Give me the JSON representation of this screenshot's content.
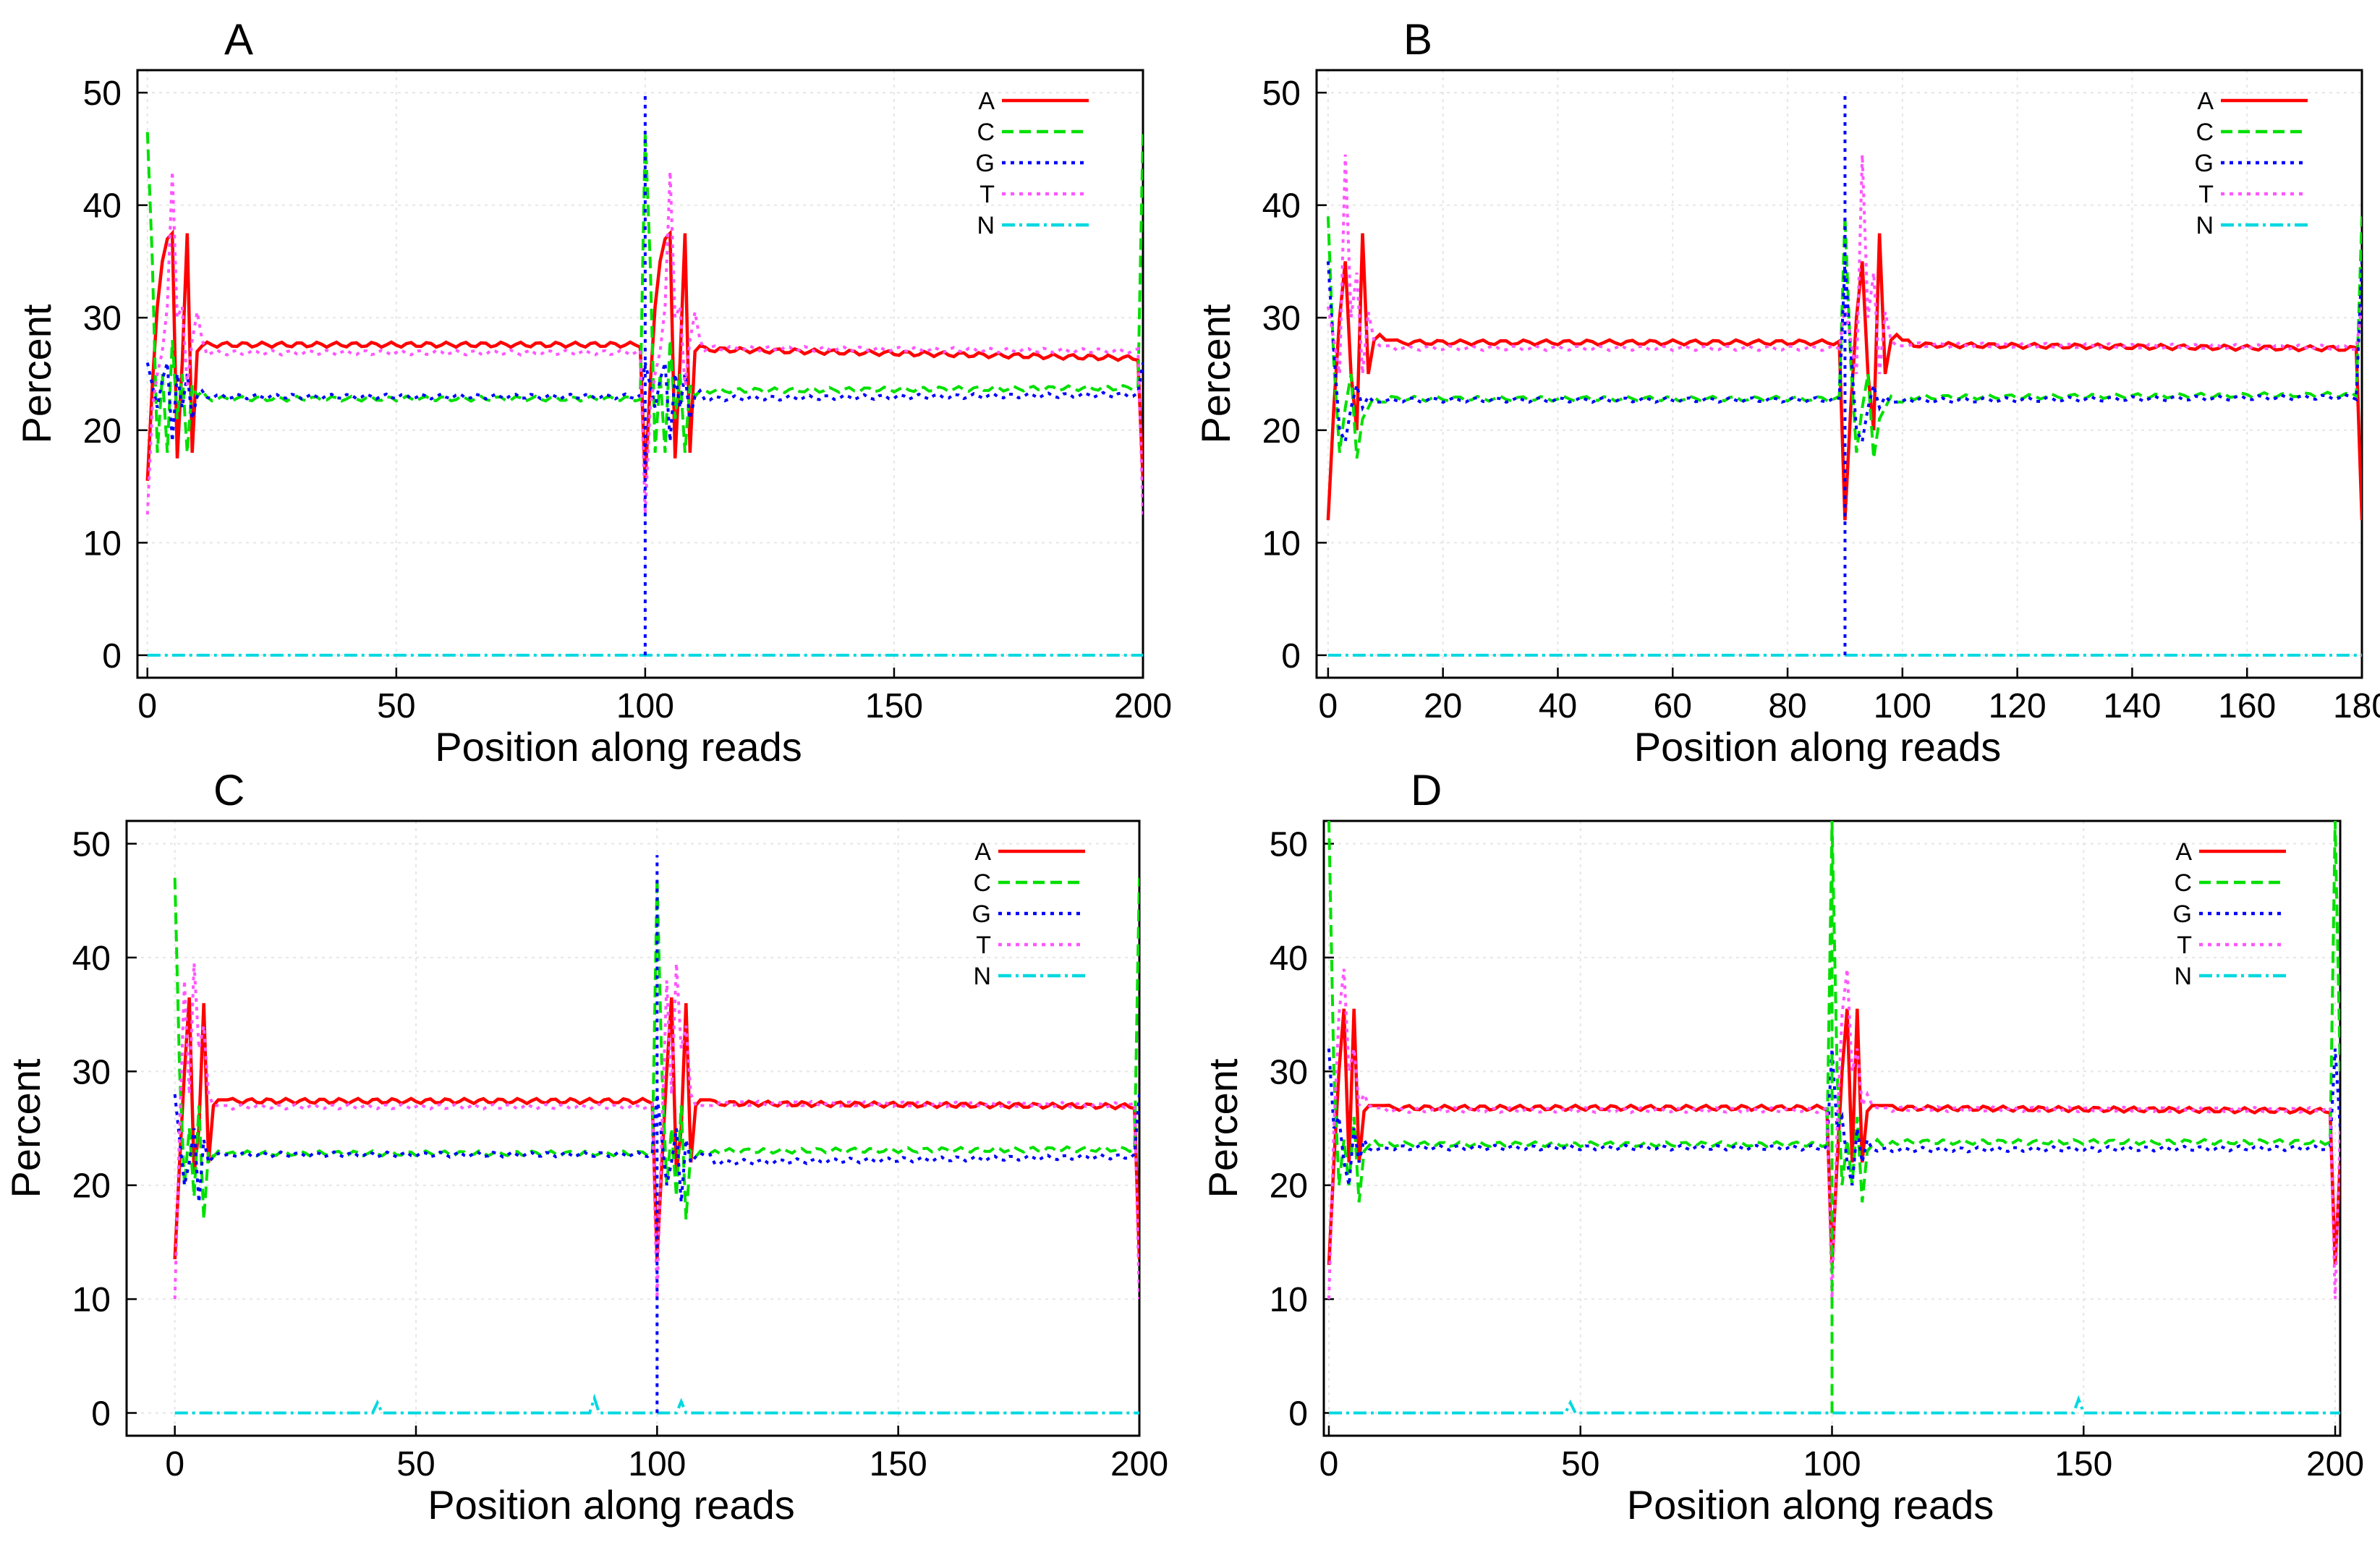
{
  "chart_data": [
    {
      "type": "line",
      "panel_label": "A",
      "xlabel": "Position along reads",
      "ylabel": "Percent",
      "xlim": [
        -2,
        200
      ],
      "ylim": [
        -2,
        52
      ],
      "xticks": [
        0,
        50,
        100,
        150,
        200
      ],
      "yticks": [
        0,
        10,
        20,
        30,
        40,
        50
      ],
      "read_length": 100,
      "legend": [
        "A",
        "C",
        "G",
        "T",
        "N"
      ],
      "series": [
        {
          "name": "A",
          "color": "#ff0000",
          "dash": "solid",
          "early": [
            15.5,
            24,
            31,
            35,
            37,
            37.5,
            17.5,
            26,
            37.5,
            18,
            27,
            27.5
          ],
          "plateau": 27.6,
          "plateau2": 27.2,
          "end": 26.3
        },
        {
          "name": "C",
          "color": "#00e000",
          "dash": "dashed",
          "early": [
            46.5,
            35,
            18,
            25,
            18,
            28,
            21,
            25,
            18,
            24,
            23,
            23.5
          ],
          "plateau": 22.8,
          "plateau2": 23.5,
          "end": 23.8
        },
        {
          "name": "G",
          "color": "#0000ff",
          "dash": "dotted",
          "early": [
            26,
            24,
            22,
            24.5,
            26,
            19,
            25,
            22,
            25,
            21,
            23,
            23.5
          ],
          "plateau": 23.0,
          "plateau2": 22.8,
          "end": 23.2
        },
        {
          "name": "T",
          "color": "#ff55ff",
          "dash": "dotted",
          "early": [
            12.5,
            22,
            25,
            27,
            31,
            43,
            30,
            31,
            24,
            28,
            30.5,
            28
          ],
          "plateau": 26.9,
          "plateau2": 27.3,
          "end": 27.0
        },
        {
          "name": "N",
          "color": "#00d8e0",
          "dash": "dashdot",
          "early": [
            0,
            0,
            0,
            0,
            0,
            0,
            0,
            0,
            0,
            0,
            0,
            0
          ],
          "plateau": 0,
          "plateau2": 0,
          "end": 0
        }
      ],
      "spike": {
        "series": "G",
        "x": 100,
        "y": 50
      },
      "n_bumps": []
    },
    {
      "type": "line",
      "panel_label": "B",
      "xlabel": "Position along reads",
      "ylabel": "Percent",
      "xlim": [
        -2,
        180
      ],
      "ylim": [
        -2,
        52
      ],
      "xticks": [
        0,
        20,
        40,
        60,
        80,
        100,
        120,
        140,
        160,
        180
      ],
      "yticks": [
        0,
        10,
        20,
        30,
        40,
        50
      ],
      "read_length": 90,
      "legend": [
        "A",
        "C",
        "G",
        "T",
        "N"
      ],
      "series": [
        {
          "name": "A",
          "color": "#ff0000",
          "dash": "solid",
          "early": [
            12,
            22,
            30,
            35,
            25,
            20,
            37.5,
            25,
            28,
            28.5,
            28,
            28
          ],
          "plateau": 27.8,
          "plateau2": 27.6,
          "end": 27.2
        },
        {
          "name": "C",
          "color": "#00e000",
          "dash": "dashed",
          "early": [
            39,
            26,
            18,
            22,
            25,
            17.5,
            21,
            22,
            23,
            22.5,
            22.5,
            23
          ],
          "plateau": 22.8,
          "plateau2": 22.9,
          "end": 23.2
        },
        {
          "name": "G",
          "color": "#0000ff",
          "dash": "dotted",
          "early": [
            35,
            27,
            20,
            19,
            22,
            24,
            22,
            23,
            22.5,
            22.5,
            22.6,
            22.8
          ],
          "plateau": 22.7,
          "plateau2": 22.6,
          "end": 23.0
        },
        {
          "name": "T",
          "color": "#ff55ff",
          "dash": "dotted",
          "early": [
            31,
            28,
            25,
            44.5,
            30,
            34,
            25,
            30.5,
            28,
            27.5,
            27.5,
            27.5
          ],
          "plateau": 27.3,
          "plateau2": 27.6,
          "end": 27.3
        },
        {
          "name": "N",
          "color": "#00d8e0",
          "dash": "dashdot",
          "early": [
            0,
            0,
            0,
            0,
            0,
            0,
            0,
            0,
            0,
            0,
            0,
            0
          ],
          "plateau": 0,
          "plateau2": 0,
          "end": 0
        }
      ],
      "spike": {
        "series": "G",
        "x": 90,
        "y": 50
      },
      "n_bumps": []
    },
    {
      "type": "line",
      "panel_label": "C",
      "xlabel": "Position along reads",
      "ylabel": "Percent",
      "xlim": [
        -10,
        200
      ],
      "ylim": [
        -2,
        52
      ],
      "xticks": [
        0,
        50,
        100,
        150,
        200
      ],
      "yticks": [
        0,
        10,
        20,
        30,
        40,
        50
      ],
      "read_length": 100,
      "legend": [
        "A",
        "C",
        "G",
        "T",
        "N"
      ],
      "series": [
        {
          "name": "A",
          "color": "#ff0000",
          "dash": "solid",
          "early": [
            13.5,
            22,
            30,
            36.5,
            21,
            25,
            36,
            22,
            27,
            27.5,
            27.5,
            27.5
          ],
          "plateau": 27.4,
          "plateau2": 27.2,
          "end": 26.9
        },
        {
          "name": "C",
          "color": "#00e000",
          "dash": "dashed",
          "early": [
            47,
            30,
            20,
            25,
            19,
            27,
            17,
            23,
            22.5,
            23,
            22.8,
            22.8
          ],
          "plateau": 22.8,
          "plateau2": 23.0,
          "end": 23.2
        },
        {
          "name": "G",
          "color": "#0000ff",
          "dash": "dotted",
          "early": [
            28,
            24,
            20,
            22,
            25,
            18.5,
            24,
            22,
            22.5,
            22.8,
            22.6,
            22.7
          ],
          "plateau": 22.7,
          "plateau2": 22.0,
          "end": 22.6
        },
        {
          "name": "T",
          "color": "#ff55ff",
          "dash": "dotted",
          "early": [
            10,
            25,
            38,
            28,
            39.5,
            32,
            34,
            28,
            27,
            27,
            27,
            27
          ],
          "plateau": 26.9,
          "plateau2": 27.2,
          "end": 27.0
        },
        {
          "name": "N",
          "color": "#00d8e0",
          "dash": "dashdot",
          "early": [
            0,
            0,
            0,
            0,
            0,
            0,
            0,
            0,
            0,
            0,
            0,
            0
          ],
          "plateau": 0,
          "plateau2": 0,
          "end": 0
        }
      ],
      "spike": {
        "series": "G",
        "x": 100,
        "y": 49
      },
      "n_bumps": [
        [
          42,
          0.9
        ],
        [
          87,
          1.3
        ],
        [
          105,
          1.0
        ]
      ]
    },
    {
      "type": "line",
      "panel_label": "D",
      "xlabel": "Position along reads",
      "ylabel": "Percent",
      "xlim": [
        -1,
        201
      ],
      "ylim": [
        -2,
        52
      ],
      "xticks": [
        0,
        50,
        100,
        150,
        200
      ],
      "yticks": [
        0,
        10,
        20,
        30,
        40,
        50
      ],
      "read_length": 100,
      "legend": [
        "A",
        "C",
        "G",
        "T",
        "N"
      ],
      "series": [
        {
          "name": "A",
          "color": "#ff0000",
          "dash": "solid",
          "early": [
            13,
            22,
            30,
            35.5,
            22,
            35.5,
            22,
            26.5,
            27,
            27,
            27,
            27
          ],
          "plateau": 26.8,
          "plateau2": 26.8,
          "end": 26.5
        },
        {
          "name": "C",
          "color": "#00e000",
          "dash": "dashed",
          "early": [
            52,
            30,
            20,
            24,
            20,
            26,
            18.5,
            23,
            23.5,
            24,
            23.5,
            23.5
          ],
          "plateau": 23.6,
          "plateau2": 23.8,
          "end": 23.8
        },
        {
          "name": "G",
          "color": "#0000ff",
          "dash": "dotted",
          "early": [
            32,
            25,
            26,
            22,
            20,
            25,
            22,
            24,
            23.2,
            23,
            23.2,
            23.3
          ],
          "plateau": 23.3,
          "plateau2": 23.1,
          "end": 23.3
        },
        {
          "name": "T",
          "color": "#ff55ff",
          "dash": "dotted",
          "early": [
            10,
            25,
            35,
            39,
            30,
            32,
            27,
            28,
            27,
            26.8,
            26.8,
            26.8
          ],
          "plateau": 26.6,
          "plateau2": 26.7,
          "end": 26.6
        },
        {
          "name": "N",
          "color": "#00d8e0",
          "dash": "dashdot",
          "early": [
            0,
            0,
            0,
            0,
            0,
            0,
            0,
            0,
            0,
            0,
            0,
            0
          ],
          "plateau": 0,
          "plateau2": 0,
          "end": 0
        }
      ],
      "spike": {
        "series": "C",
        "x": 100,
        "y": 52
      },
      "n_bumps": [
        [
          48,
          0.9
        ],
        [
          149,
          1.2
        ]
      ]
    }
  ]
}
